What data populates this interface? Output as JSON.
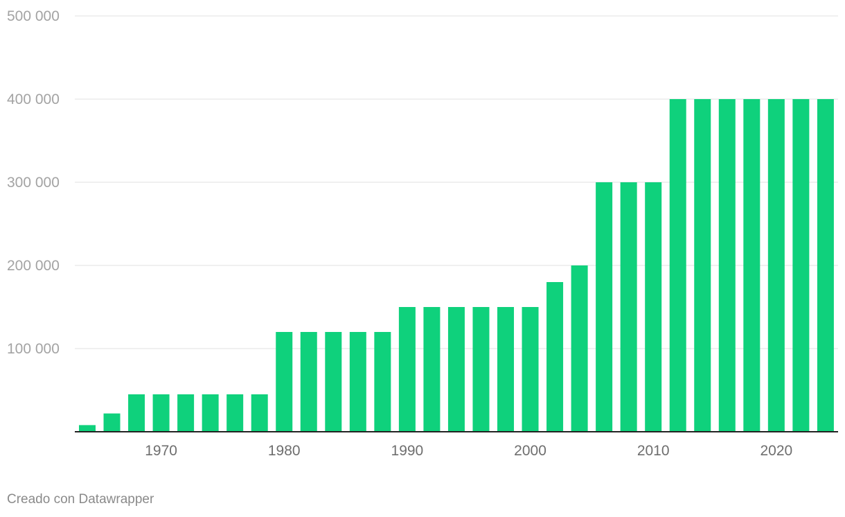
{
  "chart_data": {
    "type": "bar",
    "x": [
      1964,
      1966,
      1968,
      1970,
      1972,
      1974,
      1976,
      1978,
      1980,
      1982,
      1984,
      1986,
      1988,
      1990,
      1992,
      1994,
      1996,
      1998,
      2000,
      2002,
      2004,
      2006,
      2008,
      2010,
      2012,
      2014,
      2016,
      2018,
      2020,
      2022,
      2024
    ],
    "values": [
      8000,
      22000,
      45000,
      45000,
      45000,
      45000,
      45000,
      45000,
      120000,
      120000,
      120000,
      120000,
      120000,
      150000,
      150000,
      150000,
      150000,
      150000,
      150000,
      180000,
      200000,
      300000,
      300000,
      300000,
      400000,
      400000,
      400000,
      400000,
      400000,
      400000,
      400000
    ],
    "ylim": [
      0,
      500000
    ],
    "y_ticks": [
      100000,
      200000,
      300000,
      400000,
      500000
    ],
    "y_tick_labels": [
      "100 000",
      "200 000",
      "300 000",
      "400 000",
      "500 000"
    ],
    "x_ticks": [
      1970,
      1980,
      1990,
      2000,
      2010,
      2020
    ],
    "x_tick_labels": [
      "1970",
      "1980",
      "1990",
      "2000",
      "2010",
      "2020"
    ],
    "grid": true,
    "bar_color": "#0fd17c",
    "xlabel": "",
    "ylabel": "",
    "title": ""
  },
  "footer": {
    "credit": "Creado con Datawrapper"
  }
}
